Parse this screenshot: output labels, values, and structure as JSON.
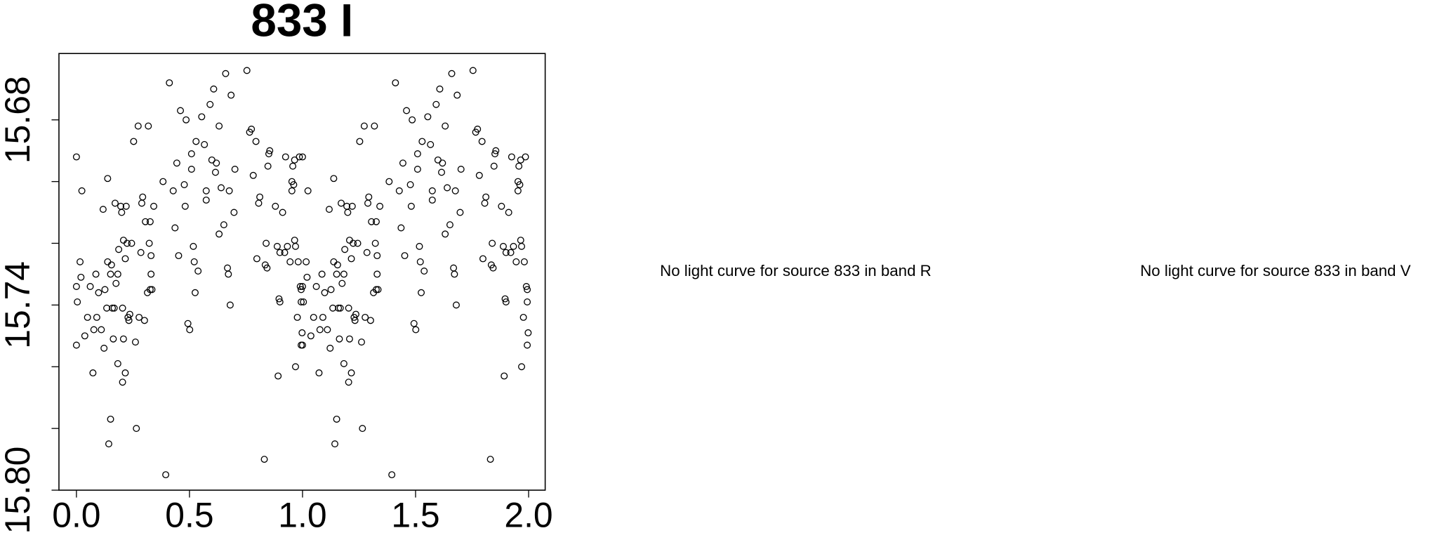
{
  "chart_data": {
    "type": "scatter",
    "title": "833 I",
    "color": "#000000",
    "xlim": [
      -0.0774,
      2.0733
    ],
    "ylim": [
      15.8,
      15.6585
    ],
    "xticks": [
      {
        "value": 0,
        "label": "0.0"
      },
      0.5,
      {
        "value": 1,
        "label": "1.0"
      },
      1.5,
      {
        "value": 2,
        "label": "2.0"
      }
    ],
    "yticks": [
      15.68,
      15.74,
      {
        "value": 15.8,
        "label": "15.80"
      }
    ],
    "yticks_minor": [
      15.7,
      15.72,
      15.76,
      15.78
    ],
    "x": [
      0.0,
      0.0,
      0.0,
      0.004,
      0.016,
      0.02,
      0.024,
      0.037,
      0.049,
      0.061,
      0.073,
      0.077,
      0.086,
      0.09,
      0.098,
      0.11,
      0.118,
      0.122,
      0.126,
      0.134,
      0.138,
      0.138,
      0.143,
      0.151,
      0.151,
      0.155,
      0.159,
      0.163,
      0.167,
      0.171,
      0.175,
      0.183,
      0.183,
      0.187,
      0.196,
      0.2,
      0.204,
      0.204,
      0.208,
      0.208,
      0.216,
      0.216,
      0.22,
      0.224,
      0.228,
      0.232,
      0.236,
      0.244,
      0.253,
      0.261,
      0.265,
      0.273,
      0.277,
      0.285,
      0.289,
      0.293,
      0.301,
      0.305,
      0.314,
      0.318,
      0.322,
      0.326,
      0.326,
      0.33,
      0.33,
      0.334,
      0.342,
      0.383,
      0.395,
      0.411,
      0.428,
      0.436,
      0.444,
      0.452,
      0.46,
      0.477,
      0.481,
      0.485,
      0.493,
      0.501,
      0.509,
      0.509,
      0.517,
      0.521,
      0.525,
      0.529,
      0.538,
      0.554,
      0.566,
      0.574,
      0.574,
      0.591,
      0.599,
      0.607,
      0.615,
      0.619,
      0.631,
      0.631,
      0.64,
      0.652,
      0.66,
      0.668,
      0.672,
      0.676,
      0.68,
      0.684,
      0.697,
      0.701,
      0.754,
      0.766,
      0.774,
      0.782,
      0.794,
      0.798,
      0.806,
      0.811,
      0.831,
      0.835,
      0.839,
      0.843,
      0.847,
      0.851,
      0.855,
      0.88,
      0.888,
      0.892,
      0.896,
      0.9,
      0.9,
      0.912,
      0.921,
      0.925,
      0.933,
      0.945,
      0.953,
      0.953,
      0.957,
      0.961,
      0.965,
      0.965,
      0.969,
      0.969,
      0.977,
      0.981,
      0.986,
      0.99,
      0.994,
      0.994,
      0.998,
      0.994,
      1.0,
      1.0,
      1.0,
      1.004,
      1.016,
      1.02,
      1.024,
      1.037,
      1.049,
      1.061,
      1.073,
      1.077,
      1.086,
      1.09,
      1.098,
      1.11,
      1.118,
      1.122,
      1.126,
      1.134,
      1.138,
      1.138,
      1.143,
      1.151,
      1.151,
      1.155,
      1.159,
      1.163,
      1.167,
      1.171,
      1.175,
      1.183,
      1.183,
      1.187,
      1.196,
      1.2,
      1.204,
      1.204,
      1.208,
      1.208,
      1.216,
      1.216,
      1.22,
      1.224,
      1.228,
      1.232,
      1.236,
      1.244,
      1.253,
      1.261,
      1.265,
      1.273,
      1.277,
      1.285,
      1.289,
      1.293,
      1.301,
      1.305,
      1.314,
      1.318,
      1.322,
      1.326,
      1.326,
      1.33,
      1.33,
      1.334,
      1.342,
      1.383,
      1.395,
      1.411,
      1.428,
      1.436,
      1.444,
      1.452,
      1.46,
      1.477,
      1.481,
      1.485,
      1.493,
      1.501,
      1.509,
      1.509,
      1.517,
      1.521,
      1.525,
      1.529,
      1.538,
      1.554,
      1.566,
      1.574,
      1.574,
      1.591,
      1.599,
      1.607,
      1.615,
      1.619,
      1.631,
      1.631,
      1.64,
      1.652,
      1.66,
      1.668,
      1.672,
      1.676,
      1.68,
      1.684,
      1.697,
      1.701,
      1.754,
      1.766,
      1.774,
      1.782,
      1.794,
      1.798,
      1.806,
      1.811,
      1.831,
      1.835,
      1.839,
      1.843,
      1.847,
      1.851,
      1.855,
      1.88,
      1.888,
      1.892,
      1.896,
      1.9,
      1.9,
      1.912,
      1.921,
      1.925,
      1.933,
      1.945,
      1.953,
      1.953,
      1.957,
      1.961,
      1.965,
      1.965,
      1.969,
      1.969,
      1.977,
      1.981,
      1.986,
      1.99,
      1.994,
      1.994,
      1.998,
      1.994
    ],
    "values": [
      15.692,
      15.734,
      15.753,
      15.739,
      15.726,
      15.731,
      15.703,
      15.75,
      15.744,
      15.734,
      15.762,
      15.748,
      15.73,
      15.744,
      15.736,
      15.748,
      15.709,
      15.754,
      15.735,
      15.741,
      15.699,
      15.726,
      15.785,
      15.777,
      15.73,
      15.727,
      15.741,
      15.751,
      15.741,
      15.707,
      15.733,
      15.73,
      15.759,
      15.722,
      15.708,
      15.71,
      15.765,
      15.741,
      15.719,
      15.751,
      15.762,
      15.725,
      15.708,
      15.72,
      15.744,
      15.745,
      15.743,
      15.72,
      15.687,
      15.752,
      15.78,
      15.682,
      15.744,
      15.723,
      15.707,
      15.705,
      15.745,
      15.713,
      15.736,
      15.682,
      15.72,
      15.713,
      15.735,
      15.73,
      15.724,
      15.735,
      15.708,
      15.7,
      15.795,
      15.668,
      15.703,
      15.715,
      15.694,
      15.724,
      15.677,
      15.701,
      15.708,
      15.68,
      15.746,
      15.748,
      15.696,
      15.691,
      15.721,
      15.726,
      15.736,
      15.687,
      15.729,
      15.679,
      15.688,
      15.706,
      15.703,
      15.675,
      15.693,
      15.67,
      15.697,
      15.694,
      15.682,
      15.717,
      15.702,
      15.714,
      15.665,
      15.728,
      15.73,
      15.703,
      15.74,
      15.672,
      15.71,
      15.696,
      15.664,
      15.684,
      15.683,
      15.698,
      15.687,
      15.725,
      15.707,
      15.705,
      15.79,
      15.727,
      15.72,
      15.728,
      15.695,
      15.691,
      15.69,
      15.708,
      15.721,
      15.763,
      15.738,
      15.739,
      15.723,
      15.71,
      15.723,
      15.692,
      15.721,
      15.726,
      15.703,
      15.7,
      15.695,
      15.701,
      15.693,
      15.719,
      15.721,
      15.76,
      15.744,
      15.726,
      15.692,
      15.734,
      15.735,
      15.753,
      15.749,
      15.739,
      15.692,
      15.734,
      15.753,
      15.739,
      15.726,
      15.731,
      15.703,
      15.75,
      15.744,
      15.734,
      15.762,
      15.748,
      15.73,
      15.744,
      15.736,
      15.748,
      15.709,
      15.754,
      15.735,
      15.741,
      15.699,
      15.726,
      15.785,
      15.777,
      15.73,
      15.727,
      15.741,
      15.751,
      15.741,
      15.707,
      15.733,
      15.73,
      15.759,
      15.722,
      15.708,
      15.71,
      15.765,
      15.741,
      15.719,
      15.751,
      15.762,
      15.725,
      15.708,
      15.72,
      15.744,
      15.745,
      15.743,
      15.72,
      15.687,
      15.752,
      15.78,
      15.682,
      15.744,
      15.723,
      15.707,
      15.705,
      15.745,
      15.713,
      15.736,
      15.682,
      15.72,
      15.713,
      15.735,
      15.73,
      15.724,
      15.735,
      15.708,
      15.7,
      15.795,
      15.668,
      15.703,
      15.715,
      15.694,
      15.724,
      15.677,
      15.701,
      15.708,
      15.68,
      15.746,
      15.748,
      15.696,
      15.691,
      15.721,
      15.726,
      15.736,
      15.687,
      15.729,
      15.679,
      15.688,
      15.706,
      15.703,
      15.675,
      15.693,
      15.67,
      15.697,
      15.694,
      15.682,
      15.717,
      15.702,
      15.714,
      15.665,
      15.728,
      15.73,
      15.703,
      15.74,
      15.672,
      15.71,
      15.696,
      15.664,
      15.684,
      15.683,
      15.698,
      15.687,
      15.725,
      15.707,
      15.705,
      15.79,
      15.727,
      15.72,
      15.728,
      15.695,
      15.691,
      15.69,
      15.708,
      15.721,
      15.763,
      15.738,
      15.739,
      15.723,
      15.71,
      15.723,
      15.692,
      15.721,
      15.726,
      15.703,
      15.7,
      15.695,
      15.701,
      15.693,
      15.719,
      15.721,
      15.76,
      15.744,
      15.726,
      15.692,
      15.734,
      15.735,
      15.753,
      15.749,
      15.739
    ]
  },
  "messages": [
    "No light curve for source 833 in band R",
    "No light curve for source 833 in band V"
  ]
}
